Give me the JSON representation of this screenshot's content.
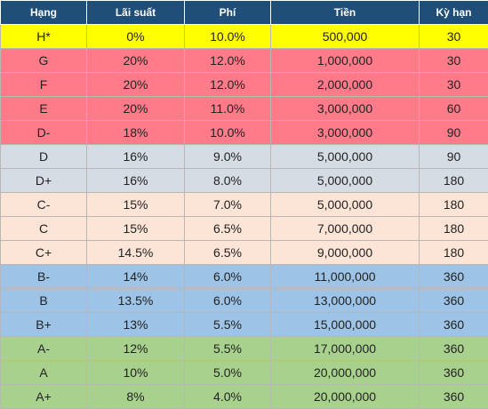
{
  "table": {
    "headers": [
      "Hạng",
      "Lãi suất",
      "Phí",
      "Tiền",
      "Kỳ hạn"
    ],
    "header_color": "#1f4e79",
    "rows": [
      {
        "cells": [
          "H*",
          "0%",
          "10.0%",
          "500,000",
          "30"
        ],
        "color": "#ffff00"
      },
      {
        "cells": [
          "G",
          "20%",
          "12.0%",
          "1,000,000",
          "30"
        ],
        "color": "#ff7b8a"
      },
      {
        "cells": [
          "F",
          "20%",
          "12.0%",
          "2,000,000",
          "30"
        ],
        "color": "#ff7b8a"
      },
      {
        "cells": [
          "E",
          "20%",
          "11.0%",
          "3,000,000",
          "60"
        ],
        "color": "#ff7b8a"
      },
      {
        "cells": [
          "D-",
          "18%",
          "10.0%",
          "3,000,000",
          "90"
        ],
        "color": "#ff7b8a"
      },
      {
        "cells": [
          "D",
          "16%",
          "9.0%",
          "5,000,000",
          "90"
        ],
        "color": "#d6dce4"
      },
      {
        "cells": [
          "D+",
          "16%",
          "8.0%",
          "5,000,000",
          "180"
        ],
        "color": "#d6dce4"
      },
      {
        "cells": [
          "C-",
          "15%",
          "7.0%",
          "5,000,000",
          "180"
        ],
        "color": "#fce4d6"
      },
      {
        "cells": [
          "C",
          "15%",
          "6.5%",
          "7,000,000",
          "180"
        ],
        "color": "#fce4d6"
      },
      {
        "cells": [
          "C+",
          "14.5%",
          "6.5%",
          "9,000,000",
          "180"
        ],
        "color": "#fce4d6"
      },
      {
        "cells": [
          "B-",
          "14%",
          "6.0%",
          "11,000,000",
          "360"
        ],
        "color": "#9dc3e6"
      },
      {
        "cells": [
          "B",
          "13.5%",
          "6.0%",
          "13,000,000",
          "360"
        ],
        "color": "#9dc3e6"
      },
      {
        "cells": [
          "B+",
          "13%",
          "5.5%",
          "15,000,000",
          "360"
        ],
        "color": "#9dc3e6"
      },
      {
        "cells": [
          "A-",
          "12%",
          "5.5%",
          "17,000,000",
          "360"
        ],
        "color": "#a9d18e"
      },
      {
        "cells": [
          "A",
          "10%",
          "5.0%",
          "20,000,000",
          "360"
        ],
        "color": "#a9d18e"
      },
      {
        "cells": [
          "A+",
          "8%",
          "4.0%",
          "20,000,000",
          "360"
        ],
        "color": "#a9d18e"
      }
    ]
  }
}
